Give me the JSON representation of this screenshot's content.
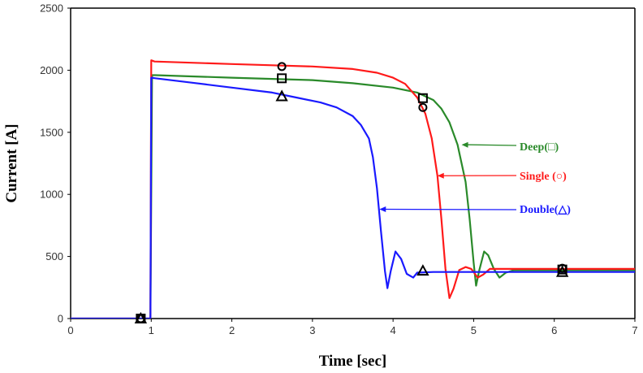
{
  "chart_data": {
    "type": "line",
    "title": "",
    "xlabel": "Time [sec]",
    "ylabel": "Current [A]",
    "xlim": [
      0,
      7
    ],
    "ylim": [
      0,
      2500
    ],
    "xticks": [
      0,
      1,
      2,
      3,
      4,
      5,
      6,
      7
    ],
    "yticks": [
      0,
      500,
      1000,
      1500,
      2000,
      2500
    ],
    "grid": false,
    "colors": {
      "axes": "#000000",
      "tick_labels": "#333333"
    },
    "series": [
      {
        "name": "Deep(□)",
        "color": "#2a8a2a",
        "marker": "square",
        "points": [
          [
            0,
            0
          ],
          [
            0.99,
            0
          ],
          [
            1.0,
            1000
          ],
          [
            1.01,
            1960
          ],
          [
            1.05,
            1960
          ],
          [
            1.5,
            1950
          ],
          [
            2.0,
            1940
          ],
          [
            2.5,
            1930
          ],
          [
            3.0,
            1920
          ],
          [
            3.5,
            1895
          ],
          [
            4.0,
            1860
          ],
          [
            4.3,
            1820
          ],
          [
            4.5,
            1760
          ],
          [
            4.6,
            1690
          ],
          [
            4.7,
            1580
          ],
          [
            4.8,
            1400
          ],
          [
            4.9,
            1100
          ],
          [
            4.95,
            800
          ],
          [
            5.0,
            450
          ],
          [
            5.03,
            265
          ],
          [
            5.07,
            390
          ],
          [
            5.13,
            540
          ],
          [
            5.18,
            510
          ],
          [
            5.25,
            400
          ],
          [
            5.32,
            330
          ],
          [
            5.4,
            370
          ],
          [
            5.5,
            390
          ],
          [
            6.0,
            390
          ],
          [
            7.0,
            390
          ]
        ],
        "markers": [
          [
            0.87,
            0
          ],
          [
            2.62,
            1935
          ],
          [
            4.37,
            1775
          ],
          [
            6.1,
            395
          ]
        ]
      },
      {
        "name": "Single (○)",
        "color": "#ff1a1a",
        "marker": "circle",
        "points": [
          [
            0,
            0
          ],
          [
            0.99,
            0
          ],
          [
            1.0,
            2080
          ],
          [
            1.04,
            2070
          ],
          [
            1.5,
            2060
          ],
          [
            2.0,
            2050
          ],
          [
            2.5,
            2040
          ],
          [
            3.0,
            2030
          ],
          [
            3.5,
            2010
          ],
          [
            3.8,
            1980
          ],
          [
            4.0,
            1940
          ],
          [
            4.15,
            1890
          ],
          [
            4.3,
            1780
          ],
          [
            4.4,
            1650
          ],
          [
            4.48,
            1450
          ],
          [
            4.55,
            1150
          ],
          [
            4.6,
            800
          ],
          [
            4.65,
            400
          ],
          [
            4.7,
            165
          ],
          [
            4.75,
            240
          ],
          [
            4.82,
            390
          ],
          [
            4.9,
            415
          ],
          [
            4.97,
            400
          ],
          [
            5.05,
            330
          ],
          [
            5.12,
            355
          ],
          [
            5.2,
            400
          ],
          [
            5.5,
            400
          ],
          [
            6.0,
            400
          ],
          [
            7.0,
            400
          ]
        ],
        "markers": [
          [
            0.87,
            0
          ],
          [
            2.62,
            2030
          ],
          [
            4.37,
            1700
          ],
          [
            6.1,
            405
          ]
        ]
      },
      {
        "name": "Double(△)",
        "color": "#1a1aff",
        "marker": "triangle",
        "points": [
          [
            0,
            0
          ],
          [
            0.99,
            0
          ],
          [
            1.0,
            1940
          ],
          [
            1.05,
            1935
          ],
          [
            1.5,
            1900
          ],
          [
            2.0,
            1860
          ],
          [
            2.5,
            1820
          ],
          [
            2.8,
            1780
          ],
          [
            3.1,
            1740
          ],
          [
            3.3,
            1700
          ],
          [
            3.5,
            1630
          ],
          [
            3.6,
            1560
          ],
          [
            3.7,
            1450
          ],
          [
            3.75,
            1300
          ],
          [
            3.8,
            1050
          ],
          [
            3.85,
            700
          ],
          [
            3.9,
            380
          ],
          [
            3.93,
            245
          ],
          [
            3.97,
            380
          ],
          [
            4.03,
            540
          ],
          [
            4.1,
            480
          ],
          [
            4.17,
            360
          ],
          [
            4.25,
            330
          ],
          [
            4.3,
            370
          ],
          [
            4.5,
            375
          ],
          [
            5.0,
            375
          ],
          [
            6.0,
            375
          ],
          [
            7.0,
            375
          ]
        ],
        "markers": [
          [
            0.87,
            0
          ],
          [
            2.62,
            1790
          ],
          [
            4.37,
            385
          ],
          [
            6.1,
            375
          ]
        ]
      }
    ],
    "annotations": [
      {
        "text": "Deep(□)",
        "series": "Deep(□)",
        "point_to": [
          4.85,
          1400
        ]
      },
      {
        "text": "Single (○)",
        "series": "Single (○)",
        "point_to": [
          4.55,
          1150
        ]
      },
      {
        "text": "Double(△)",
        "series": "Double(△)",
        "point_to": [
          3.83,
          880
        ]
      }
    ]
  }
}
